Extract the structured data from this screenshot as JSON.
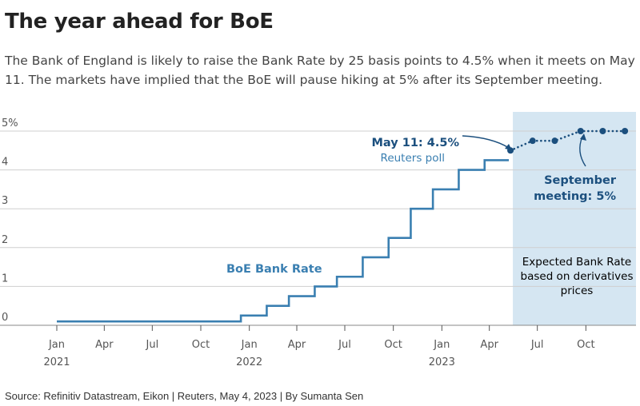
{
  "title": "The year ahead for BoE",
  "subtitle": "The Bank of England is likely to raise the Bank Rate by 25 basis points to 4.5% when it meets on May 11. The markets have implied that the BoE will pause hiking at 5% after its September meeting.",
  "source": "Source: Refinitiv Datastream, Eikon | Reuters, May 4, 2023 | By Sumanta Sen",
  "colors": {
    "line": "#3a7fb1",
    "expected": "#1b4f7e",
    "shade": "#d5e6f2",
    "grid": "#cfcfcf"
  },
  "chart_data": {
    "type": "line",
    "title": "",
    "xlabel": "",
    "ylabel": "",
    "ylim": [
      0,
      5
    ],
    "xlim": [
      "2021-01-01",
      "2024-01-01"
    ],
    "y_ticks": [
      {
        "value": 0,
        "label": "0"
      },
      {
        "value": 1,
        "label": "1"
      },
      {
        "value": 2,
        "label": "2"
      },
      {
        "value": 3,
        "label": "3"
      },
      {
        "value": 4,
        "label": "4"
      },
      {
        "value": 5,
        "label": "5%"
      }
    ],
    "x_ticks": [
      {
        "date": "2021-01-01",
        "label": "Jan",
        "year": "2021"
      },
      {
        "date": "2021-04-01",
        "label": "Apr",
        "year": ""
      },
      {
        "date": "2021-07-01",
        "label": "Jul",
        "year": ""
      },
      {
        "date": "2021-10-01",
        "label": "Oct",
        "year": ""
      },
      {
        "date": "2022-01-01",
        "label": "Jan",
        "year": "2022"
      },
      {
        "date": "2022-04-01",
        "label": "Apr",
        "year": ""
      },
      {
        "date": "2022-07-01",
        "label": "Jul",
        "year": ""
      },
      {
        "date": "2022-10-01",
        "label": "Oct",
        "year": ""
      },
      {
        "date": "2023-01-01",
        "label": "Jan",
        "year": "2023"
      },
      {
        "date": "2023-04-01",
        "label": "Apr",
        "year": ""
      },
      {
        "date": "2023-07-01",
        "label": "Jul",
        "year": ""
      },
      {
        "date": "2023-10-01",
        "label": "Oct",
        "year": ""
      }
    ],
    "series": [
      {
        "name": "BoE Bank Rate",
        "style": "step",
        "points": [
          {
            "x": "2021-01-01",
            "y": 0.1
          },
          {
            "x": "2021-12-16",
            "y": 0.25
          },
          {
            "x": "2022-02-03",
            "y": 0.5
          },
          {
            "x": "2022-03-17",
            "y": 0.75
          },
          {
            "x": "2022-05-05",
            "y": 1.0
          },
          {
            "x": "2022-06-16",
            "y": 1.25
          },
          {
            "x": "2022-08-04",
            "y": 1.75
          },
          {
            "x": "2022-09-22",
            "y": 2.25
          },
          {
            "x": "2022-11-03",
            "y": 3.0
          },
          {
            "x": "2022-12-15",
            "y": 3.5
          },
          {
            "x": "2023-02-02",
            "y": 4.0
          },
          {
            "x": "2023-03-23",
            "y": 4.25
          },
          {
            "x": "2023-05-04",
            "y": 4.25
          }
        ]
      },
      {
        "name": "Expected Bank Rate based on derivatives prices",
        "style": "dotted",
        "points": [
          {
            "x": "2023-05-11",
            "y": 4.5
          },
          {
            "x": "2023-06-22",
            "y": 4.75
          },
          {
            "x": "2023-08-03",
            "y": 4.75
          },
          {
            "x": "2023-09-21",
            "y": 5.0
          },
          {
            "x": "2023-11-02",
            "y": 5.0
          },
          {
            "x": "2023-12-14",
            "y": 5.0
          }
        ]
      }
    ],
    "shaded_region": {
      "from": "2023-05-11",
      "to": "2024-01-01"
    },
    "annotations": {
      "line_label": "BoE Bank Rate",
      "may_bold": "May 11: 4.5%",
      "may_sub": "Reuters poll",
      "sep_line1": "September",
      "sep_line2": "meeting: 5%",
      "expected_line1": "Expected Bank Rate",
      "expected_line2": "based on derivatives",
      "expected_line3": "prices"
    }
  }
}
